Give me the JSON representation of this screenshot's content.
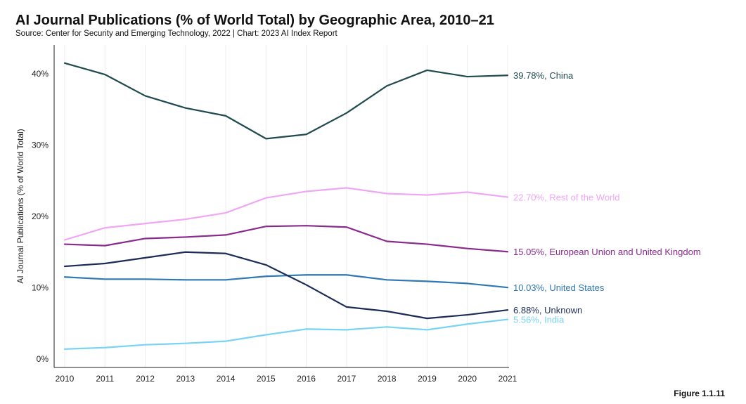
{
  "header": {
    "title": "AI Journal Publications (% of World Total) by Geographic Area, 2010–21",
    "subtitle": "Source: Center for Security and Emerging Technology, 2022 | Chart: 2023 AI Index Report"
  },
  "footer": {
    "figure_label": "Figure 1.1.11"
  },
  "chart_data": {
    "type": "line",
    "title": "AI Journal Publications (% of World Total) by Geographic Area, 2010–21",
    "xlabel": "",
    "ylabel": "AI Journal Publications (% of World Total)",
    "x": [
      2010,
      2011,
      2012,
      2013,
      2014,
      2015,
      2016,
      2017,
      2018,
      2019,
      2020,
      2021
    ],
    "ylim": [
      0,
      42
    ],
    "yticks": [
      0,
      10,
      20,
      30,
      40
    ],
    "ytick_labels": [
      "0%",
      "10%",
      "20%",
      "30%",
      "40%"
    ],
    "grid": "vertical",
    "series": [
      {
        "name": "China",
        "end_label": "39.78%, China",
        "color": "#1f4a50",
        "values": [
          41.5,
          39.9,
          36.9,
          35.2,
          34.1,
          30.9,
          31.5,
          34.5,
          38.3,
          40.5,
          39.6,
          39.78
        ]
      },
      {
        "name": "Rest of the World",
        "end_label": "22.70%, Rest of the World",
        "color": "#efa6f5",
        "values": [
          16.7,
          18.4,
          19.0,
          19.6,
          20.5,
          22.6,
          23.5,
          24.0,
          23.2,
          23.0,
          23.4,
          22.7
        ]
      },
      {
        "name": "European Union and United Kingdom",
        "end_label": "15.05%, European Union and United Kingdom",
        "color": "#8a2a8e",
        "values": [
          16.1,
          15.9,
          16.9,
          17.1,
          17.4,
          18.6,
          18.7,
          18.5,
          16.5,
          16.1,
          15.5,
          15.05
        ]
      },
      {
        "name": "United States",
        "end_label": "10.03%, United States",
        "color": "#2e78b6",
        "values": [
          11.5,
          11.2,
          11.2,
          11.1,
          11.1,
          11.6,
          11.8,
          11.8,
          11.1,
          10.9,
          10.6,
          10.03
        ]
      },
      {
        "name": "Unknown",
        "end_label": "6.88%, Unknown",
        "color": "#1c2c58",
        "values": [
          13.0,
          13.4,
          14.2,
          15.0,
          14.8,
          13.2,
          10.4,
          7.3,
          6.7,
          5.7,
          6.2,
          6.88
        ]
      },
      {
        "name": "India",
        "end_label": "5.56%, India",
        "color": "#79d3f2",
        "values": [
          1.4,
          1.6,
          2.0,
          2.2,
          2.5,
          3.4,
          4.2,
          4.1,
          4.5,
          4.1,
          4.9,
          5.56
        ]
      }
    ]
  }
}
